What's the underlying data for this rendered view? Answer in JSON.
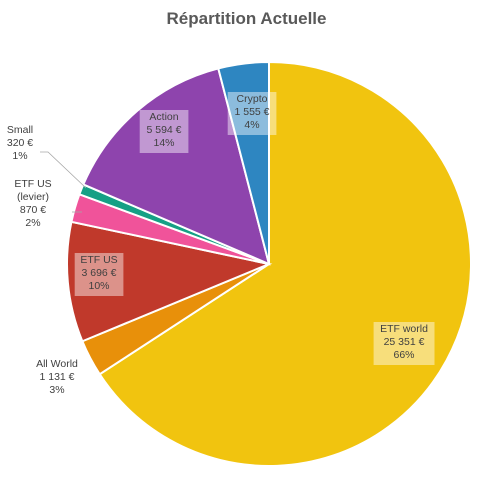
{
  "chart_data": {
    "type": "pie",
    "title": "Répartition Actuelle",
    "slices": [
      {
        "name": "ETF world",
        "value_label": "25 351 €",
        "value": 25351,
        "percent_label": "66%",
        "color": "#F1C40F"
      },
      {
        "name": "All World",
        "value_label": "1 131 €",
        "value": 1131,
        "percent_label": "3%",
        "color": "#E8900A"
      },
      {
        "name": "ETF US",
        "value_label": "3 696 €",
        "value": 3696,
        "percent_label": "10%",
        "color": "#C0392B"
      },
      {
        "name": "ETF US (levier)",
        "value_label": "870 €",
        "value": 870,
        "percent_label": "2%",
        "color": "#F0539A"
      },
      {
        "name": "Small",
        "value_label": "320 €",
        "value": 320,
        "percent_label": "1%",
        "color": "#16A085"
      },
      {
        "name": "Action",
        "value_label": "5 594 €",
        "value": 5594,
        "percent_label": "14%",
        "color": "#8E44AD"
      },
      {
        "name": "Crypto",
        "value_label": "1 555 €",
        "value": 1555,
        "percent_label": "4%",
        "color": "#2E86C1"
      }
    ]
  }
}
